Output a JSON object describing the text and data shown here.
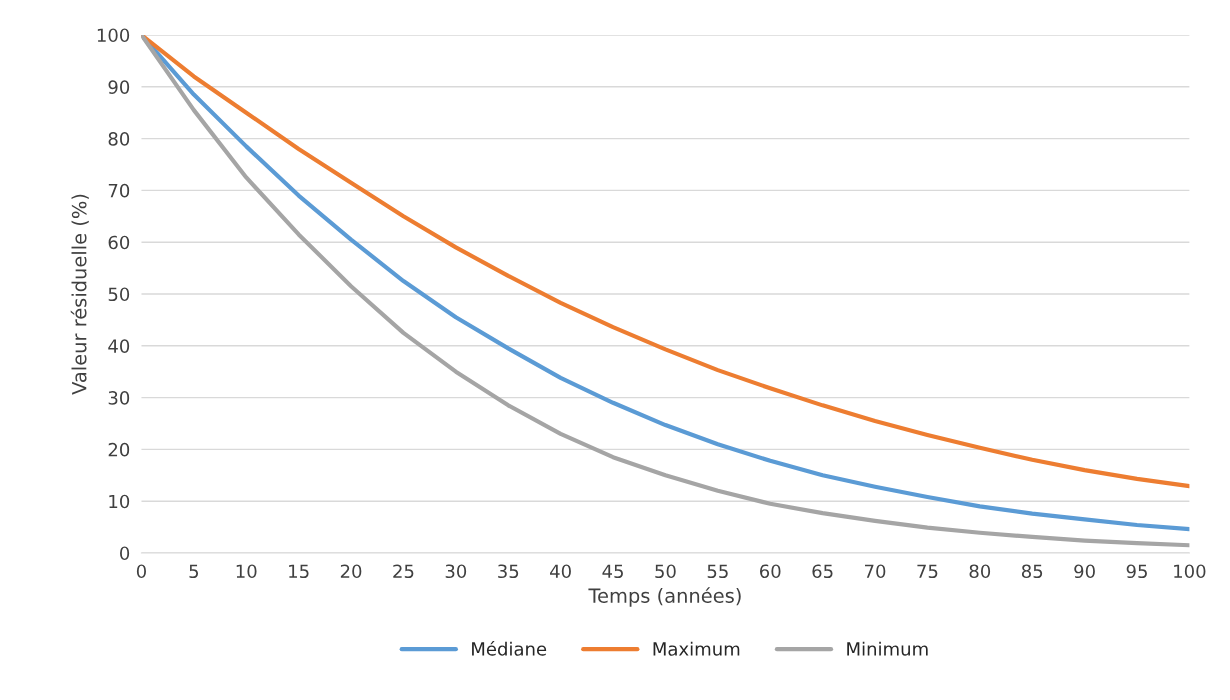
{
  "chart_data": {
    "type": "line",
    "xlabel": "Temps (années)",
    "ylabel": "Valeur résiduelle (%)",
    "categories": [
      "0",
      "5",
      "10",
      "15",
      "20",
      "25",
      "30",
      "35",
      "40",
      "45",
      "50",
      "55",
      "60",
      "65",
      "70",
      "75",
      "80",
      "85",
      "90",
      "95",
      "100"
    ],
    "series": [
      {
        "name": "Médiane",
        "color": "#5b9bd5",
        "values": [
          100,
          88.5,
          78.5,
          69,
          60.5,
          52.5,
          45.5,
          39.5,
          33.8,
          29,
          24.7,
          21,
          17.8,
          15,
          12.8,
          10.8,
          9,
          7.6,
          6.5,
          5.4,
          4.6
        ]
      },
      {
        "name": "Maximum",
        "color": "#ed7d31",
        "values": [
          100,
          92,
          85,
          78,
          71.5,
          65,
          59,
          53.5,
          48.3,
          43.6,
          39.3,
          35.3,
          31.8,
          28.5,
          25.5,
          22.8,
          20.3,
          18,
          16,
          14.3,
          12.9
        ]
      },
      {
        "name": "Minimum",
        "color": "#a5a5a5",
        "values": [
          100,
          85.5,
          72.5,
          61.5,
          51.5,
          42.5,
          35,
          28.5,
          23,
          18.5,
          15,
          12,
          9.5,
          7.7,
          6.2,
          4.9,
          3.9,
          3.1,
          2.4,
          1.9,
          1.5
        ]
      }
    ],
    "ylim": [
      0,
      100
    ],
    "yticks": [
      0,
      10,
      20,
      30,
      40,
      50,
      60,
      70,
      80,
      90,
      100
    ],
    "grid": "y",
    "legend": "bottom",
    "marker": "none",
    "line_style": "solid"
  }
}
